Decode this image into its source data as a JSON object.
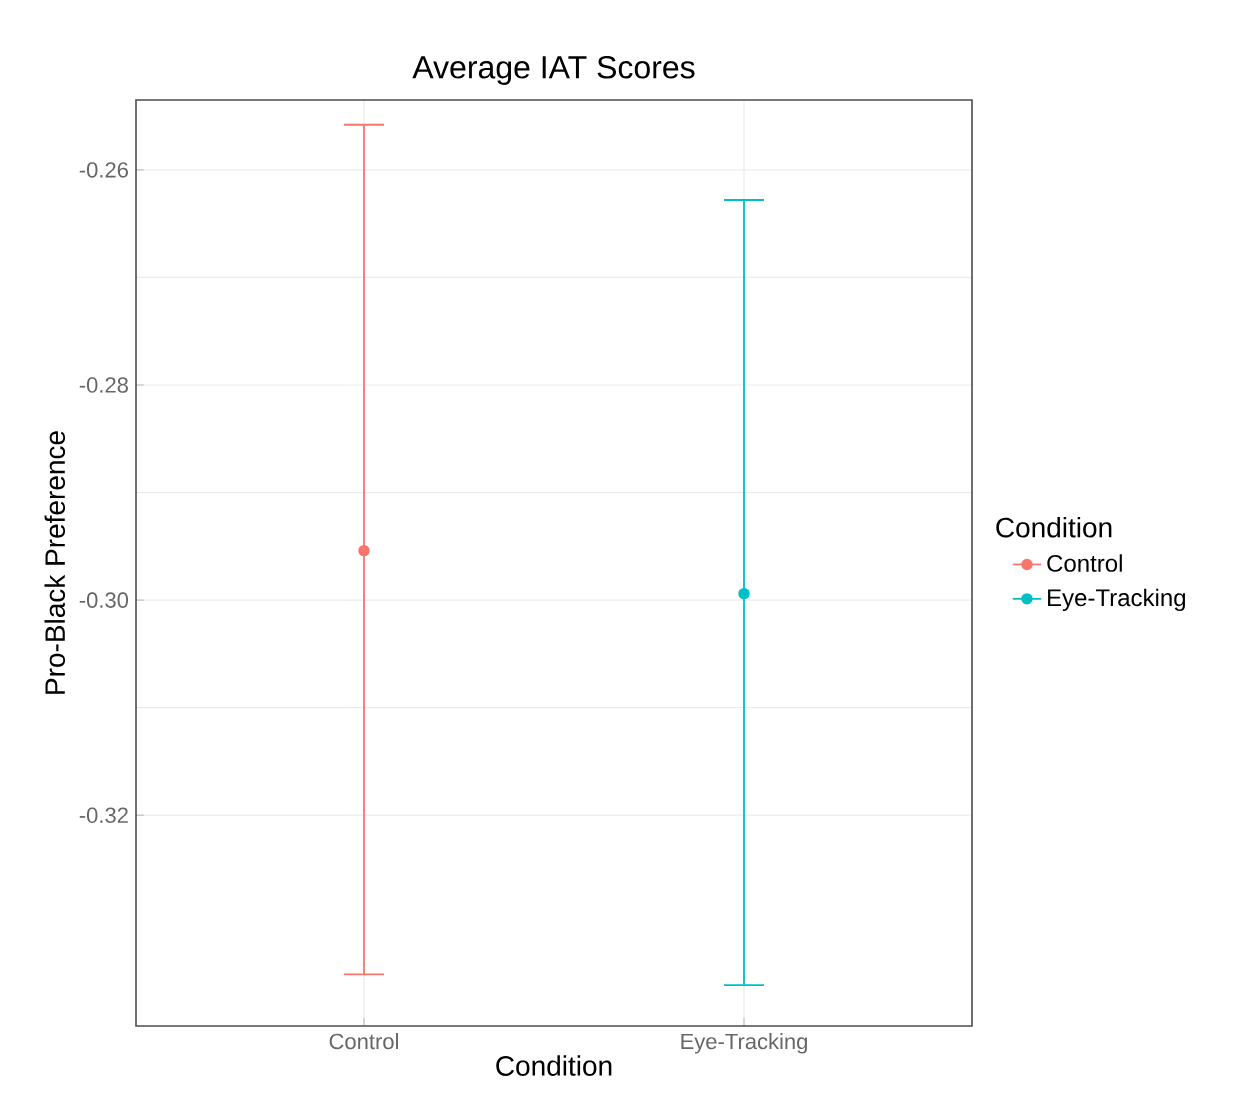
{
  "chart_data": {
    "type": "scatter",
    "title": "Average IAT Scores",
    "xlabel": "Condition",
    "ylabel": "Pro-Black Preference",
    "legend_title": "Condition",
    "categories": [
      "Control",
      "Eye-Tracking"
    ],
    "series": [
      {
        "name": "Control",
        "color": "#f8766d",
        "x": [
          "Control"
        ],
        "values": [
          -0.2954
        ],
        "errors": [
          [
            -0.3348,
            -0.2558
          ]
        ]
      },
      {
        "name": "Eye-Tracking",
        "color": "#00bfc4",
        "x": [
          "Eye-Tracking"
        ],
        "values": [
          -0.2994
        ],
        "errors": [
          [
            -0.3358,
            -0.2628
          ]
        ]
      }
    ],
    "ylim": [
      -0.3396,
      -0.2535
    ],
    "yticks": [
      -0.32,
      {
        "value": -0.3,
        "label": "-0.30"
      },
      -0.28,
      -0.26
    ],
    "grid": true,
    "legend": "right",
    "marker": "circle"
  }
}
